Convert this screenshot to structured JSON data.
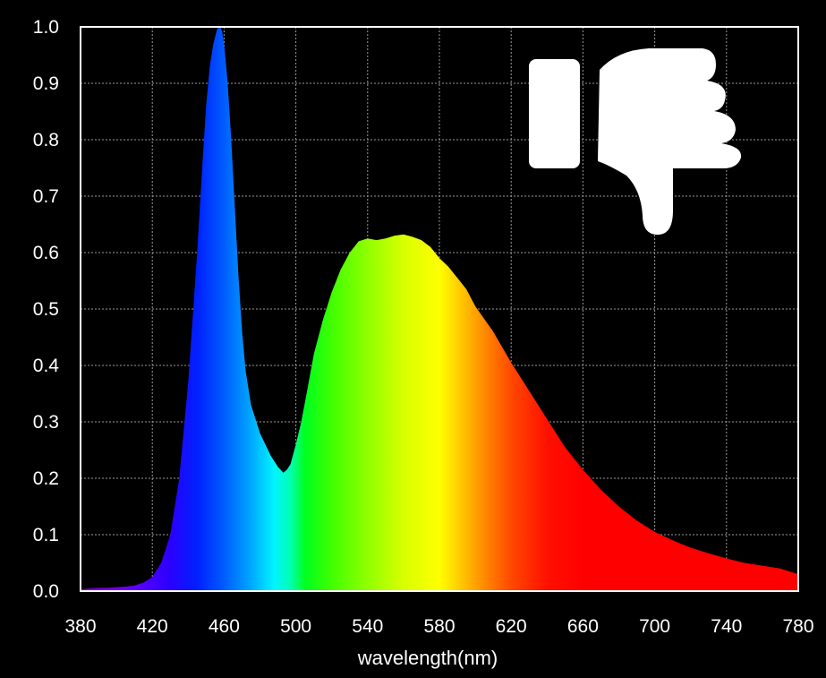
{
  "chart_data": {
    "type": "area",
    "title": "",
    "xlabel": "wavelength(nm)",
    "ylabel": "",
    "xlim": [
      380,
      780
    ],
    "ylim": [
      0,
      1.0
    ],
    "grid": true,
    "x_ticks": [
      "380",
      "420",
      "460",
      "500",
      "540",
      "580",
      "620",
      "660",
      "700",
      "740",
      "780"
    ],
    "y_ticks": [
      "0.0",
      "0.1",
      "0.2",
      "0.3",
      "0.4",
      "0.5",
      "0.6",
      "0.7",
      "0.8",
      "0.9",
      "1.0"
    ],
    "fill": "visible-spectrum colors by wavelength",
    "series": [
      {
        "x": [
          380,
          385,
          390,
          395,
          400,
          405,
          410,
          415,
          420,
          425,
          430,
          435,
          440,
          445,
          448,
          450,
          452,
          454,
          456,
          457,
          458,
          459,
          460,
          462,
          464,
          466,
          468,
          470,
          472,
          475,
          478,
          480,
          483,
          486,
          490,
          493,
          495,
          497,
          500,
          503,
          506,
          510,
          515,
          520,
          525,
          530,
          535,
          540,
          545,
          550,
          555,
          560,
          565,
          570,
          575,
          580,
          585,
          590,
          595,
          600,
          610,
          620,
          630,
          640,
          650,
          660,
          670,
          680,
          690,
          700,
          710,
          720,
          730,
          740,
          750,
          760,
          770,
          780
        ],
        "y": [
          0.003,
          0.005,
          0.006,
          0.006,
          0.007,
          0.008,
          0.01,
          0.015,
          0.025,
          0.05,
          0.1,
          0.2,
          0.37,
          0.6,
          0.76,
          0.86,
          0.93,
          0.97,
          0.995,
          1.0,
          1.0,
          0.99,
          0.97,
          0.9,
          0.8,
          0.68,
          0.56,
          0.46,
          0.39,
          0.33,
          0.3,
          0.28,
          0.26,
          0.24,
          0.22,
          0.21,
          0.215,
          0.225,
          0.26,
          0.3,
          0.35,
          0.42,
          0.48,
          0.53,
          0.57,
          0.6,
          0.62,
          0.625,
          0.622,
          0.625,
          0.63,
          0.632,
          0.628,
          0.622,
          0.61,
          0.59,
          0.575,
          0.555,
          0.535,
          0.505,
          0.46,
          0.405,
          0.355,
          0.305,
          0.255,
          0.215,
          0.18,
          0.15,
          0.125,
          0.105,
          0.09,
          0.077,
          0.067,
          0.058,
          0.05,
          0.045,
          0.04,
          0.03
        ]
      }
    ]
  },
  "icons": {
    "rating": "thumbs-down-icon",
    "color": "#ffffff"
  },
  "colors": {
    "background": "#000000",
    "plot_border": "#ffffff",
    "grid": "#9a9a9a",
    "text": "#ffffff"
  }
}
